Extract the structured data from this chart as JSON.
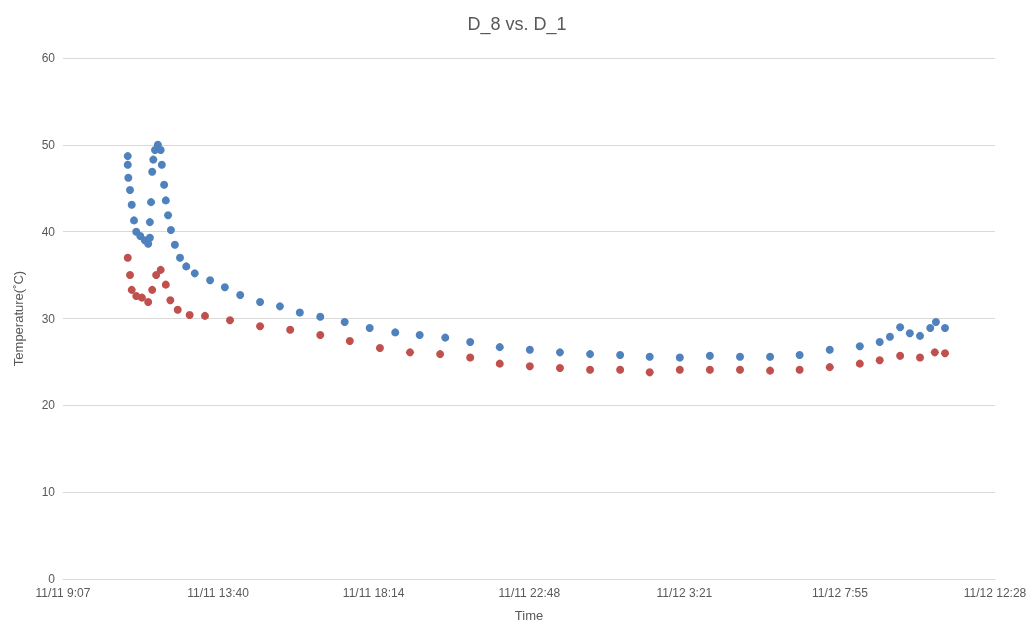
{
  "chart_data": {
    "type": "scatter",
    "title": "D_8 vs. D_1",
    "xlabel": "Time",
    "ylabel": "Temperature(˚C)",
    "marker": "circle",
    "grid": "y",
    "xlim": [
      "--11-11T09:07",
      "--11-12T12:28"
    ],
    "xticks": [
      {
        "value": "--11-11T09:07",
        "label": "11/11 9:07"
      },
      {
        "value": "--11-11T13:40",
        "label": "11/11 13:40"
      },
      {
        "value": "--11-11T18:14",
        "label": "11/11 18:14"
      },
      {
        "value": "--11-11T22:48",
        "label": "11/11 22:48"
      },
      {
        "value": "--11-12T03:21",
        "label": "11/12 3:21"
      },
      {
        "value": "--11-12T07:55",
        "label": "11/12 7:55"
      },
      {
        "value": "--11-12T12:28",
        "label": "11/12 12:28"
      }
    ],
    "ylim": [
      0,
      60
    ],
    "yticks": [
      0,
      10,
      20,
      30,
      40,
      50,
      60
    ],
    "series": [
      {
        "color": "#4f81bd",
        "x": [
          "--11-11T11:01",
          "--11-11T11:01",
          "--11-11T11:02",
          "--11-11T11:05",
          "--11-11T11:08",
          "--11-11T11:12",
          "--11-11T11:16",
          "--11-11T11:23",
          "--11-11T11:31",
          "--11-11T11:37",
          "--11-11T11:40",
          "--11-11T11:40",
          "--11-11T11:42",
          "--11-11T11:44",
          "--11-11T11:46",
          "--11-11T11:49",
          "--11-11T11:54",
          "--11-11T11:59",
          "--11-11T12:01",
          "--11-11T12:05",
          "--11-11T12:08",
          "--11-11T12:12",
          "--11-11T12:17",
          "--11-11T12:24",
          "--11-11T12:33",
          "--11-11T12:44",
          "--11-11T12:59",
          "--11-11T13:26",
          "--11-11T13:52",
          "--11-11T14:19",
          "--11-11T14:54",
          "--11-11T15:29",
          "--11-11T16:04",
          "--11-11T16:40",
          "--11-11T17:23",
          "--11-11T18:07",
          "--11-11T18:52",
          "--11-11T19:35",
          "--11-11T20:20",
          "--11-11T21:04",
          "--11-11T21:56",
          "--11-11T22:49",
          "--11-11T23:42",
          "--11-12T00:35",
          "--11-12T01:28",
          "--11-12T02:20",
          "--11-12T03:13",
          "--11-12T04:06",
          "--11-12T04:59",
          "--11-12T05:52",
          "--11-12T06:44",
          "--11-12T07:37",
          "--11-12T08:30",
          "--11-12T09:05",
          "--11-12T09:23",
          "--11-12T09:41",
          "--11-12T09:58",
          "--11-12T10:16",
          "--11-12T10:34",
          "--11-12T10:44",
          "--11-12T11:00"
        ],
        "values": [
          48.7,
          47.7,
          46.2,
          44.8,
          43.1,
          41.3,
          40.0,
          39.5,
          39.0,
          38.6,
          39.3,
          41.1,
          43.4,
          46.9,
          48.3,
          49.4,
          50.0,
          49.4,
          47.7,
          45.4,
          43.6,
          41.9,
          40.2,
          38.5,
          37.0,
          36.0,
          35.2,
          34.4,
          33.6,
          32.7,
          31.9,
          31.4,
          30.7,
          30.2,
          29.6,
          28.9,
          28.4,
          28.1,
          27.8,
          27.3,
          26.7,
          26.4,
          26.1,
          25.9,
          25.8,
          25.6,
          25.5,
          25.7,
          25.6,
          25.6,
          25.8,
          26.4,
          26.8,
          27.3,
          27.9,
          29.0,
          28.3,
          28.0,
          28.9,
          29.6,
          28.9
        ]
      },
      {
        "color": "#c0504d",
        "x": [
          "--11-11T11:01",
          "--11-11T11:05",
          "--11-11T11:08",
          "--11-11T11:16",
          "--11-11T11:26",
          "--11-11T11:37",
          "--11-11T11:44",
          "--11-11T11:51",
          "--11-11T11:59",
          "--11-11T12:08",
          "--11-11T12:16",
          "--11-11T12:29",
          "--11-11T12:50",
          "--11-11T13:17",
          "--11-11T14:01",
          "--11-11T14:54",
          "--11-11T15:47",
          "--11-11T16:40",
          "--11-11T17:32",
          "--11-11T18:25",
          "--11-11T19:18",
          "--11-11T20:11",
          "--11-11T21:04",
          "--11-11T21:56",
          "--11-11T22:49",
          "--11-11T23:42",
          "--11-12T00:35",
          "--11-12T01:28",
          "--11-12T02:20",
          "--11-12T03:13",
          "--11-12T04:06",
          "--11-12T04:59",
          "--11-12T05:52",
          "--11-12T06:44",
          "--11-12T07:37",
          "--11-12T08:30",
          "--11-12T09:05",
          "--11-12T09:41",
          "--11-12T10:16",
          "--11-12T10:42",
          "--11-12T11:00"
        ],
        "values": [
          37.0,
          35.0,
          33.3,
          32.6,
          32.4,
          31.9,
          33.3,
          35.0,
          35.6,
          33.9,
          32.1,
          31.0,
          30.4,
          30.3,
          29.8,
          29.1,
          28.7,
          28.1,
          27.4,
          26.6,
          26.1,
          25.9,
          25.5,
          24.8,
          24.5,
          24.3,
          24.1,
          24.1,
          23.8,
          24.1,
          24.1,
          24.1,
          24.0,
          24.1,
          24.4,
          24.8,
          25.2,
          25.7,
          25.5,
          26.1,
          26.0
        ]
      }
    ]
  }
}
